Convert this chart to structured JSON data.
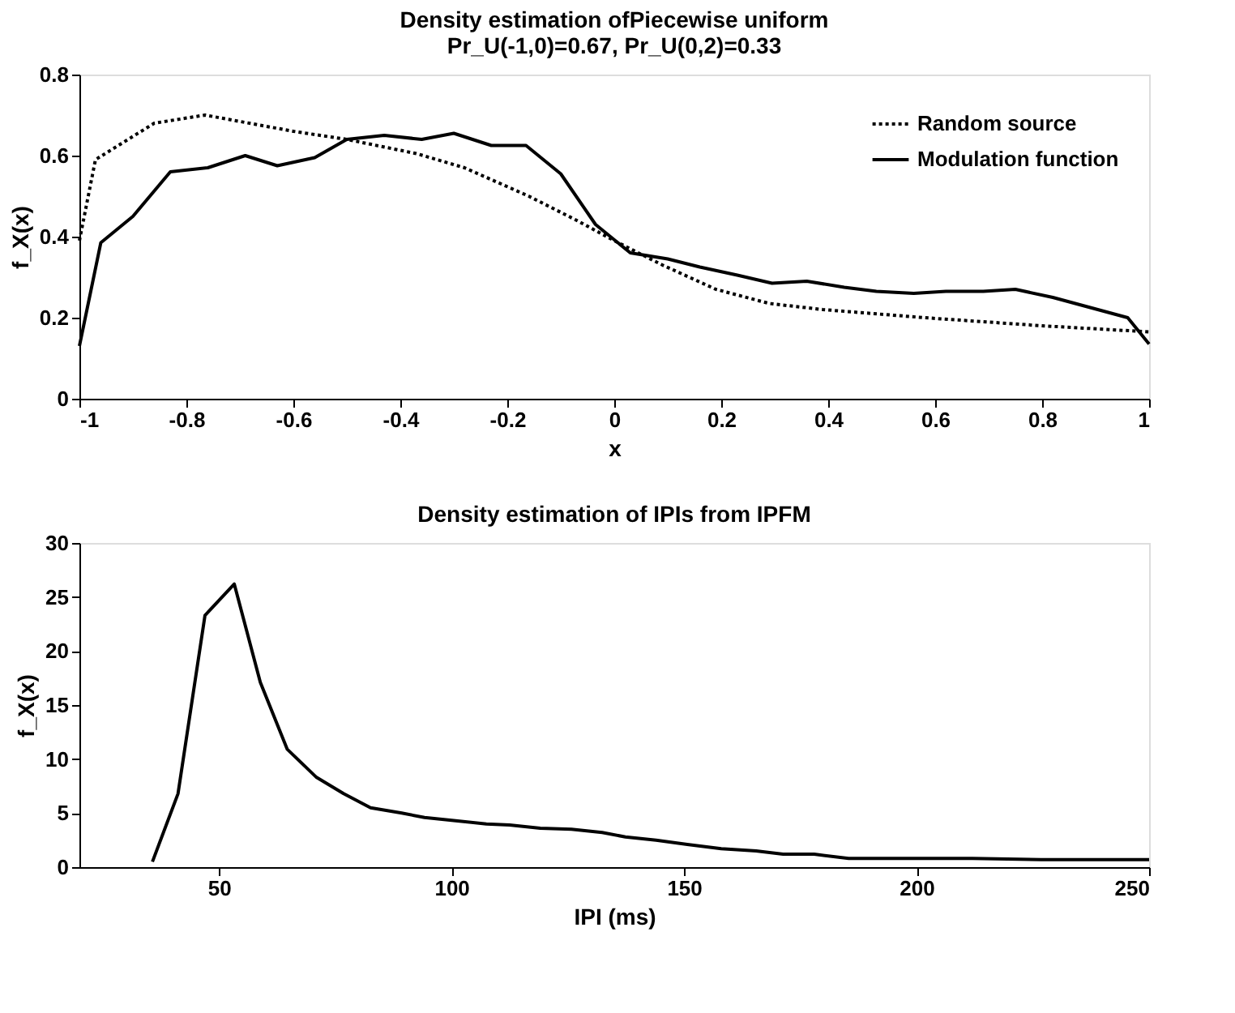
{
  "chart_data": [
    {
      "type": "line",
      "title": [
        "Density estimation ofPiecewise uniform",
        "Pr_U(-1,0)=0.67, Pr_U(0,2)=0.33"
      ],
      "xlabel": "x",
      "ylabel": "f_X(x)",
      "xlim": [
        -1,
        1
      ],
      "xticks": [
        -1,
        -0.8,
        -0.6,
        -0.4,
        -0.2,
        0,
        0.2,
        0.4,
        0.6,
        0.8,
        1
      ],
      "ylim": [
        0,
        0.8
      ],
      "yticks": [
        0,
        0.2,
        0.4,
        0.6,
        0.8
      ],
      "grid": false,
      "legend": "top right",
      "marker": "none",
      "series": [
        {
          "name": "Random source",
          "color": "#000000",
          "line_style": "dotted",
          "x": [
            -1,
            -0.97,
            -0.86,
            -0.765,
            -0.6,
            -0.5,
            -0.37,
            -0.28,
            -0.16,
            -0.07,
            0,
            0.09,
            0.19,
            0.29,
            0.39,
            0.58,
            0.8,
            1
          ],
          "values": [
            0.39,
            0.59,
            0.68,
            0.7,
            0.66,
            0.64,
            0.605,
            0.57,
            0.5,
            0.44,
            0.39,
            0.33,
            0.27,
            0.235,
            0.22,
            0.2,
            0.18,
            0.165
          ]
        },
        {
          "name": "Modulation function",
          "color": "#000000",
          "line_style": "solid",
          "x": [
            -1,
            -0.96,
            -0.9,
            -0.83,
            -0.76,
            -0.69,
            -0.63,
            -0.56,
            -0.5,
            -0.43,
            -0.36,
            -0.3,
            -0.23,
            -0.165,
            -0.1,
            -0.035,
            0.03,
            0.1,
            0.16,
            0.23,
            0.295,
            0.36,
            0.43,
            0.49,
            0.56,
            0.62,
            0.69,
            0.75,
            0.82,
            0.89,
            0.96,
            1
          ],
          "values": [
            0.13,
            0.385,
            0.45,
            0.56,
            0.57,
            0.6,
            0.575,
            0.595,
            0.64,
            0.65,
            0.64,
            0.655,
            0.625,
            0.625,
            0.555,
            0.43,
            0.36,
            0.345,
            0.325,
            0.305,
            0.285,
            0.29,
            0.275,
            0.265,
            0.26,
            0.265,
            0.265,
            0.27,
            0.25,
            0.225,
            0.2,
            0.135
          ]
        }
      ]
    },
    {
      "type": "line",
      "title": "Density estimation of IPIs from IPFM",
      "xlabel": "IPI (ms)",
      "ylabel": "f_X(x)",
      "xlim": [
        20,
        250
      ],
      "xticks": [
        50,
        100,
        150,
        200,
        250
      ],
      "ylim": [
        0,
        30
      ],
      "yticks": [
        0,
        5,
        10,
        15,
        20,
        25,
        30
      ],
      "grid": false,
      "legend": false,
      "marker": "none",
      "series": [
        {
          "color": "#000000",
          "line_style": "solid",
          "x": [
            35.7,
            41.2,
            47,
            53.3,
            58.9,
            64.7,
            71,
            76.8,
            82.6,
            89.3,
            94.2,
            100.9,
            107.5,
            112.5,
            119.1,
            125.8,
            132.4,
            137.4,
            144,
            150.7,
            158,
            165.5,
            171.3,
            178,
            185.4,
            200.4,
            212,
            226.8,
            250
          ],
          "values": [
            0.5,
            6.8,
            23.3,
            26.2,
            17.1,
            10.9,
            8.3,
            6.8,
            5.5,
            5.0,
            4.6,
            4.3,
            4.0,
            3.9,
            3.6,
            3.5,
            3.2,
            2.8,
            2.5,
            2.1,
            1.7,
            1.5,
            1.2,
            1.2,
            0.8,
            0.8,
            0.8,
            0.7,
            0.7
          ]
        }
      ]
    }
  ]
}
